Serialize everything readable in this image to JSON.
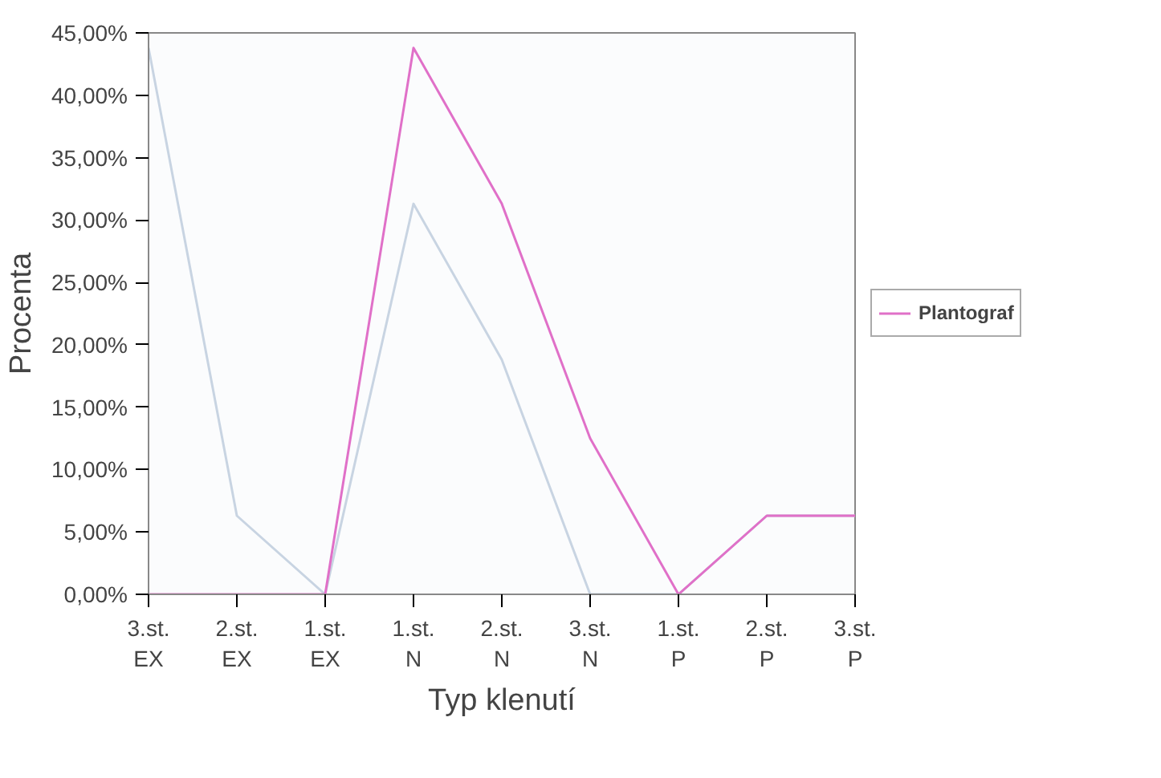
{
  "chart_data": {
    "type": "line",
    "xlabel": "Typ klenutí",
    "ylabel": "Procenta",
    "categories": [
      "3.st.\nEX",
      "2.st.\nEX",
      "1.st.\nEX",
      "1.st.\nN",
      "2.st.\nN",
      "3.st.\nN",
      "1.st.\nP",
      "2.st.\nP",
      "3.st.\nP"
    ],
    "series": [
      {
        "color": "#c8d4e2",
        "values": [
          43.8,
          6.3,
          0,
          31.3,
          18.8,
          0,
          0,
          6.3,
          6.3
        ]
      },
      {
        "name": "Plantograf",
        "color": "#e070c8",
        "values": [
          0,
          0,
          0,
          43.8,
          31.3,
          12.5,
          0,
          6.3,
          6.3
        ]
      }
    ],
    "ylim": [
      0,
      45
    ],
    "yticks": [
      {
        "value": 0,
        "label": "0,00%"
      },
      {
        "value": 5,
        "label": "5,00%"
      },
      {
        "value": 10,
        "label": "10,00%"
      },
      {
        "value": 15,
        "label": "15,00%"
      },
      {
        "value": 20,
        "label": "20,00%"
      },
      {
        "value": 25,
        "label": "25,00%"
      },
      {
        "value": 30,
        "label": "30,00%"
      },
      {
        "value": 35,
        "label": "35,00%"
      },
      {
        "value": 40,
        "label": "40,00%"
      },
      {
        "value": 45,
        "label": "45,00%"
      }
    ],
    "grid": false,
    "legend": "right",
    "marker": "none",
    "line_style": "solid"
  }
}
